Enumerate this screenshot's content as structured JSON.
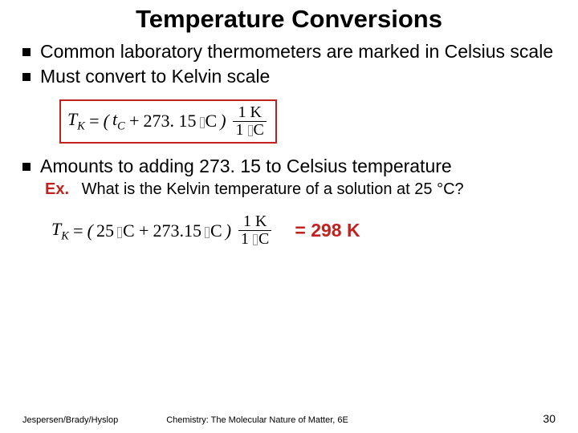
{
  "title": "Temperature Conversions",
  "bullets": {
    "b1": "Common laboratory thermometers are marked in Celsius scale",
    "b2": "Must convert to Kelvin scale",
    "b3": "Amounts to adding 273. 15 to Celsius temperature"
  },
  "formula1": {
    "lhs_var": "T",
    "lhs_sub": "K",
    "eq": "=",
    "open": "(",
    "var2": "t",
    "var2_sub": "C",
    "plus": "+",
    "const": "273. 15",
    "unit_c": "C",
    "close": ")",
    "frac_num_val": "1 K",
    "frac_den_val": "1",
    "frac_den_unit": "C"
  },
  "example": {
    "label": "Ex.",
    "text": "What is the Kelvin temperature of a solution at 25 °C?"
  },
  "formula2": {
    "lhs_var": "T",
    "lhs_sub": "K",
    "eq": "=",
    "open": "(",
    "val": "25",
    "unit_c1": "C",
    "plus": "+",
    "const": "273.15",
    "unit_c2": "C",
    "close": ")",
    "frac_num_val": "1 K",
    "frac_den_val": "1",
    "frac_den_unit": "C"
  },
  "answer": "= 298 K",
  "footer": {
    "authors": "Jespersen/Brady/Hyslop",
    "book": "Chemistry: The Molecular Nature of Matter, 6E",
    "page": "30"
  },
  "colors": {
    "accent_red": "#c2221f",
    "text": "#000000",
    "background": "#ffffff"
  }
}
